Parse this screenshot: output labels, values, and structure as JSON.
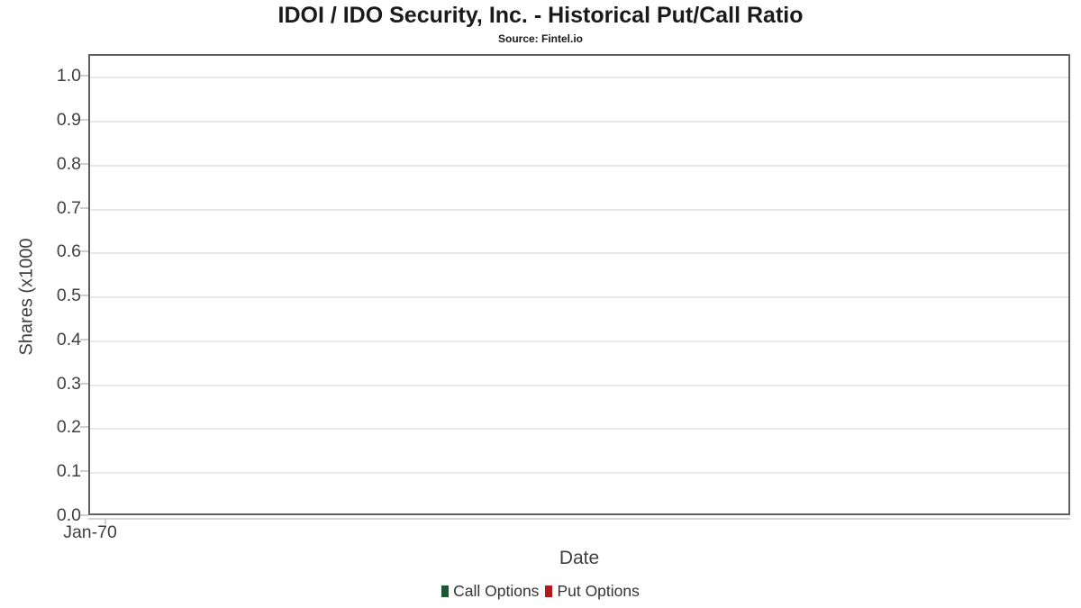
{
  "chart_data": {
    "type": "line",
    "title": "IDOI / IDO Security, Inc. - Historical Put/Call Ratio",
    "subtitle": "Source: Fintel.io",
    "xlabel": "Date",
    "ylabel": "Shares (x1000",
    "x_tick_labels": [
      "Jan-70"
    ],
    "y_ticks": [
      0.0,
      0.1,
      0.2,
      0.3,
      0.4,
      0.5,
      0.6,
      0.7,
      0.8,
      0.9,
      1.0
    ],
    "ylim": [
      0,
      1.05
    ],
    "grid": "horizontal-only",
    "legend_position": "bottom-center",
    "series": [
      {
        "name": "Call Options",
        "color": "#1a5632",
        "values": []
      },
      {
        "name": "Put Options",
        "color": "#b11b1b",
        "values": []
      }
    ],
    "colors": {
      "plot_border": "#606060",
      "gridline": "#e8e8e8",
      "tick_mark": "#cfcfcf",
      "axis_text": "#3f3f3f",
      "title_text": "#1a1a1a",
      "legend_text": "#333333",
      "background": "#ffffff"
    }
  }
}
